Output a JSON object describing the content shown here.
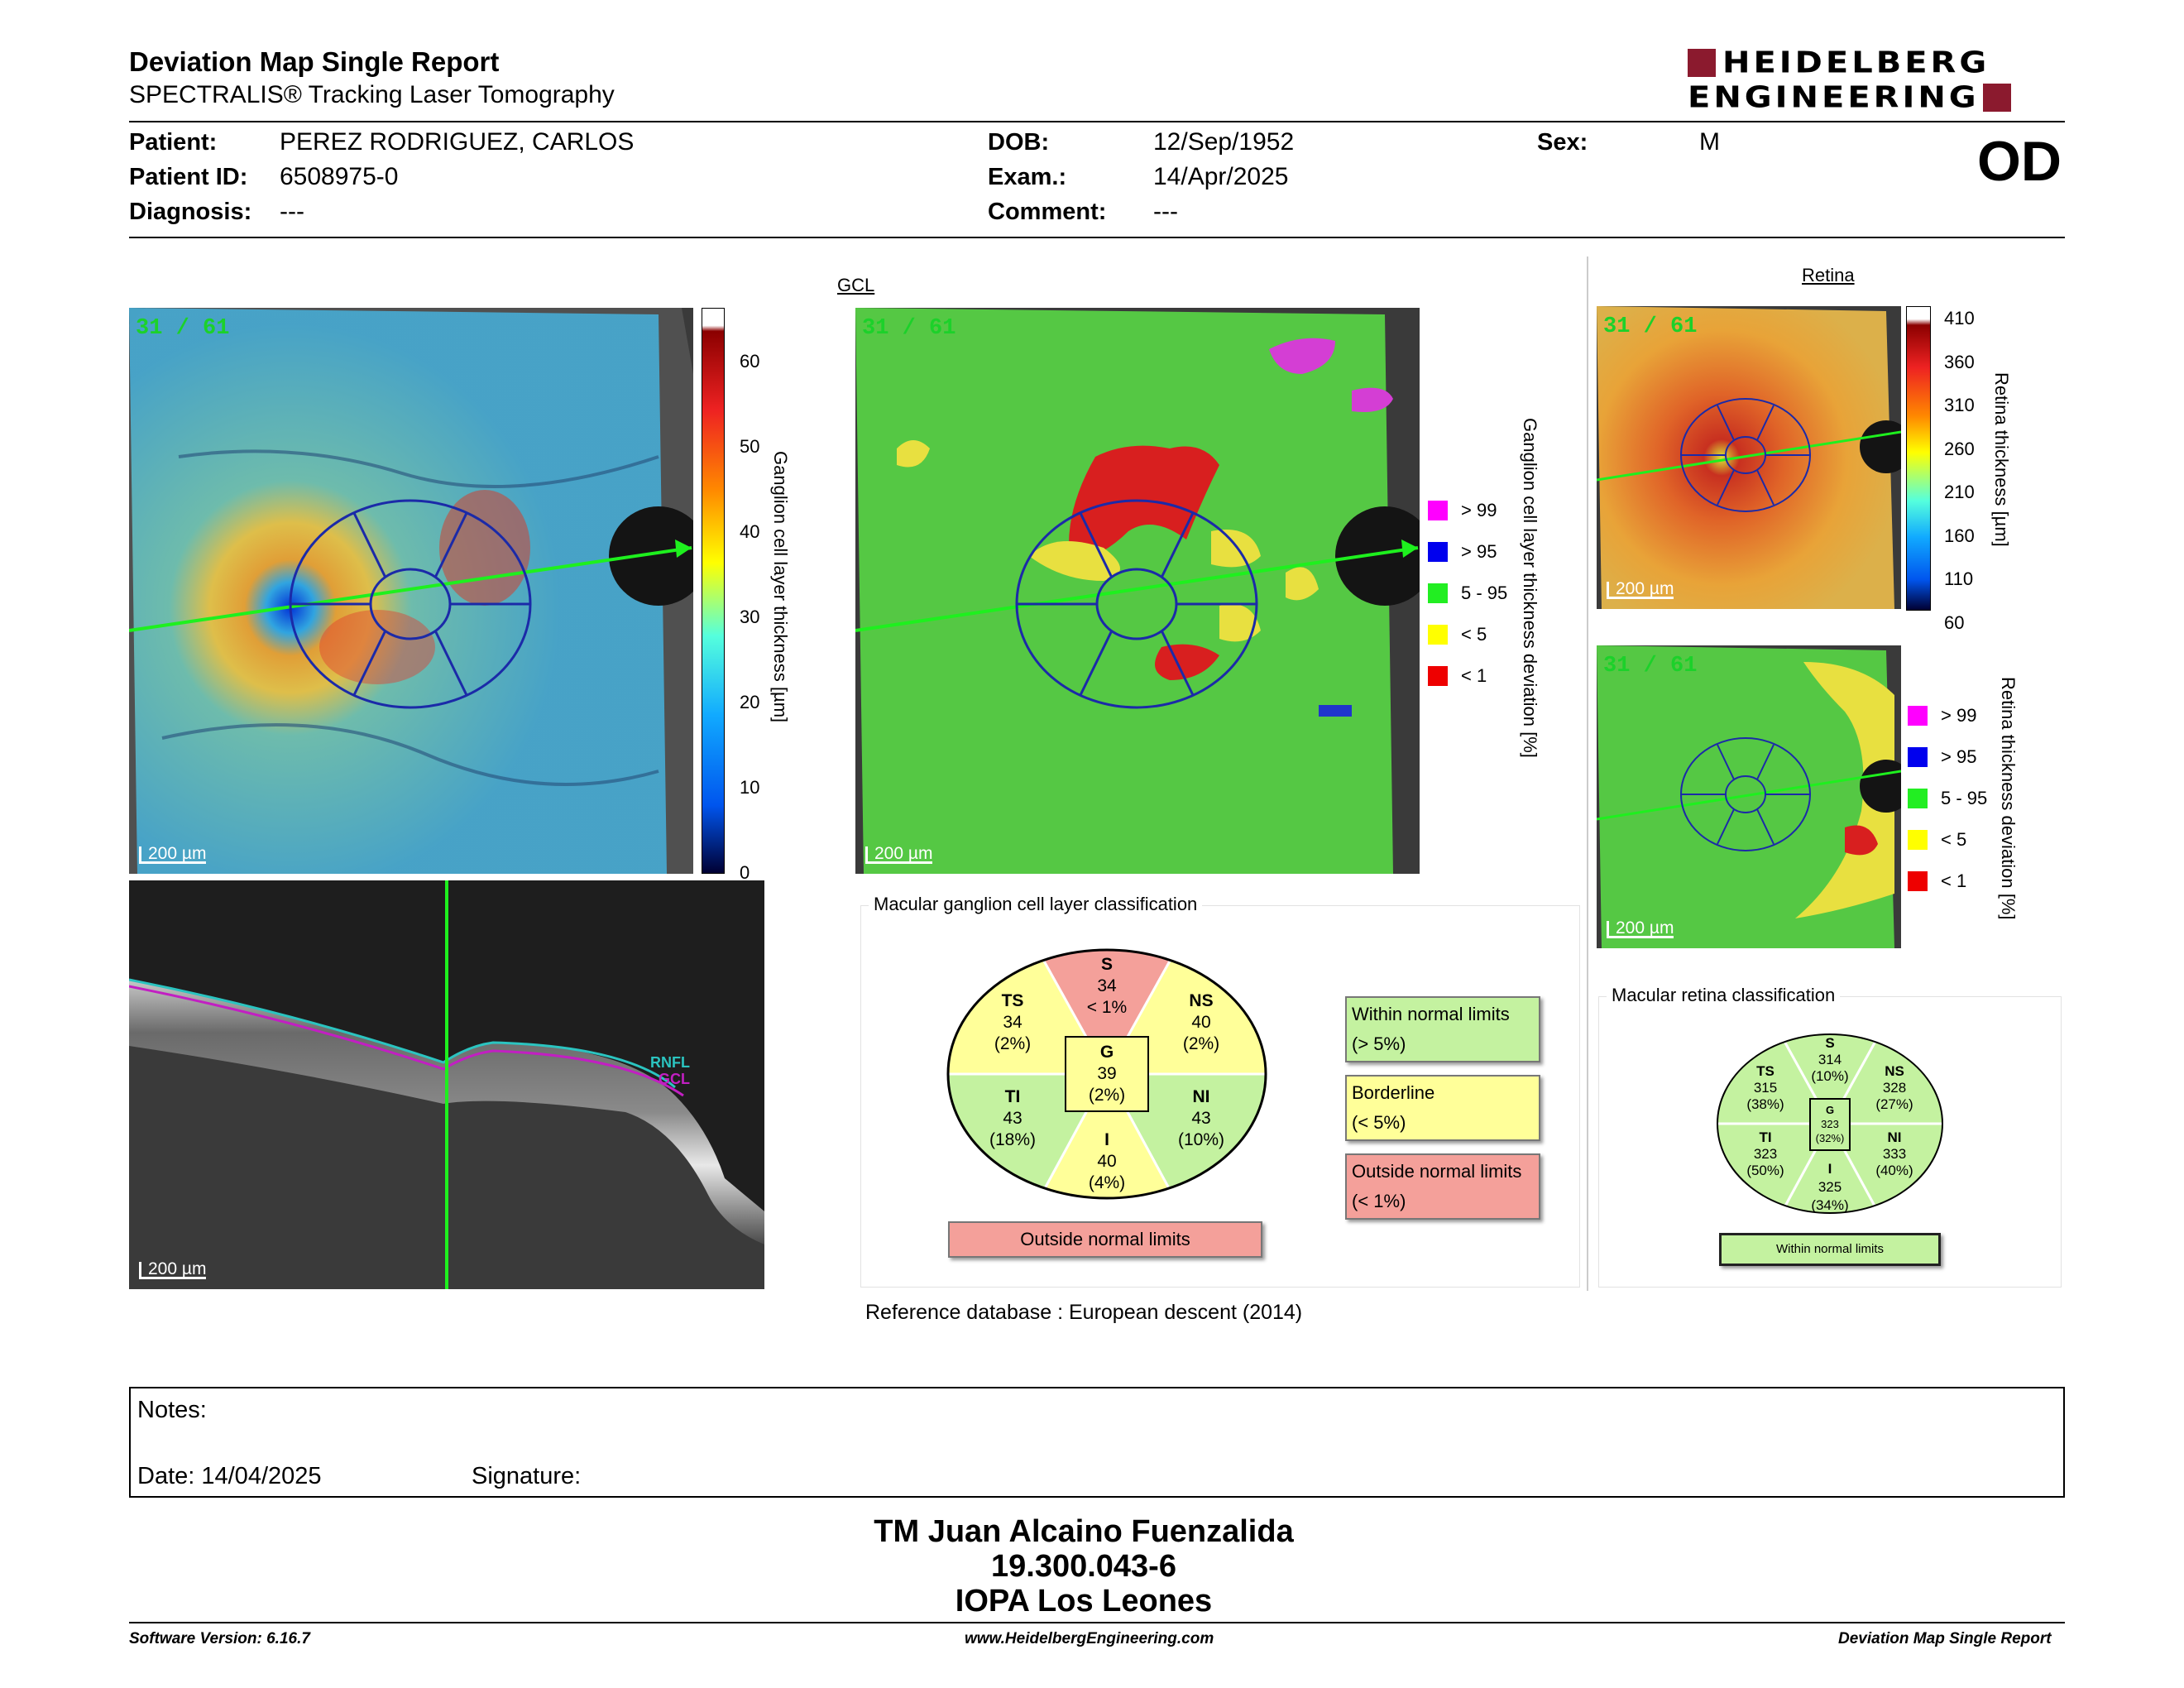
{
  "header": {
    "title": "Deviation Map Single Report",
    "subtitle": "SPECTRALIS® Tracking Laser Tomography",
    "logo_line1": "HEIDELBERG",
    "logo_line2": "ENGINEERING",
    "eye": "OD"
  },
  "patient": {
    "patient_label": "Patient:",
    "patient": "PEREZ RODRIGUEZ, CARLOS",
    "id_label": "Patient ID:",
    "id": "6508975-0",
    "diag_label": "Diagnosis:",
    "diagnosis": "---",
    "dob_label": "DOB:",
    "dob": "12/Sep/1952",
    "exam_label": "Exam.:",
    "exam": "14/Apr/2025",
    "comment_label": "Comment:",
    "comment": "---",
    "sex_label": "Sex:",
    "sex": "M"
  },
  "gcl_section": {
    "title": "GCL",
    "thickness_map": {
      "frame": "31 / 61",
      "scale": "200 µm"
    },
    "thickness_bar": {
      "label": "Ganglion cell layer thickness [µm]",
      "ticks": [
        "60",
        "50",
        "40",
        "30",
        "20",
        "10",
        "0"
      ]
    },
    "deviation_map": {
      "frame": "31 / 61",
      "scale": "200 µm"
    },
    "deviation_label": "Ganglion cell layer thickness deviation [%]",
    "legend": [
      {
        "label": "> 99",
        "color": "#ff00ff"
      },
      {
        "label": "> 95",
        "color": "#0000ee"
      },
      {
        "label": "5 - 95",
        "color": "#22ee22"
      },
      {
        "label": "< 5",
        "color": "#ffff00"
      },
      {
        "label": "< 1",
        "color": "#ee0000"
      }
    ]
  },
  "bscan": {
    "scale": "200 µm",
    "rnfl": "RNFL",
    "gcl": "GCL"
  },
  "gcl_classification": {
    "title": "Macular ganglion cell layer classification",
    "sectors": {
      "S": {
        "name": "S",
        "value": "34",
        "pct": "< 1%",
        "color": "#f4a09a"
      },
      "NS": {
        "name": "NS",
        "value": "40",
        "pct": "(2%)",
        "color": "#ffff99"
      },
      "NI": {
        "name": "NI",
        "value": "43",
        "pct": "(10%)",
        "color": "#c4f2a0"
      },
      "I": {
        "name": "I",
        "value": "40",
        "pct": "(4%)",
        "color": "#ffff99"
      },
      "TI": {
        "name": "TI",
        "value": "43",
        "pct": "(18%)",
        "color": "#c4f2a0"
      },
      "TS": {
        "name": "TS",
        "value": "34",
        "pct": "(2%)",
        "color": "#ffff99"
      },
      "G": {
        "name": "G",
        "value": "39",
        "pct": "(2%)",
        "color": "#ffff99"
      }
    },
    "overall": "Outside normal limits",
    "legend": [
      {
        "line1": "Within normal limits",
        "line2": "(> 5%)",
        "color": "#c4f2a0"
      },
      {
        "line1": "Borderline",
        "line2": "(< 5%)",
        "color": "#ffff99"
      },
      {
        "line1": "Outside normal limits",
        "line2": "(< 1%)",
        "color": "#f4a09a"
      }
    ],
    "reference": "Reference database :  European descent (2014)"
  },
  "retina_section": {
    "title": "Retina",
    "thickness_map": {
      "frame": "31 / 61",
      "scale": "200 µm"
    },
    "thickness_bar": {
      "label": "Retina thickness [µm]",
      "ticks": [
        "410",
        "360",
        "310",
        "260",
        "210",
        "160",
        "110",
        "60"
      ]
    },
    "deviation_map": {
      "frame": "31 / 61",
      "scale": "200 µm"
    },
    "deviation_label": "Retina thickness deviation [%]",
    "legend": [
      {
        "label": "> 99",
        "color": "#ff00ff"
      },
      {
        "label": "> 95",
        "color": "#0000ee"
      },
      {
        "label": "5 - 95",
        "color": "#22ee22"
      },
      {
        "label": "< 5",
        "color": "#ffff00"
      },
      {
        "label": "< 1",
        "color": "#ee0000"
      }
    ]
  },
  "retina_classification": {
    "title": "Macular retina classification",
    "sectors": {
      "S": {
        "name": "S",
        "value": "314",
        "pct": "(10%)"
      },
      "NS": {
        "name": "NS",
        "value": "328",
        "pct": "(27%)"
      },
      "NI": {
        "name": "NI",
        "value": "333",
        "pct": "(40%)"
      },
      "I": {
        "name": "I",
        "value": "325",
        "pct": "(34%)"
      },
      "TI": {
        "name": "TI",
        "value": "323",
        "pct": "(50%)"
      },
      "TS": {
        "name": "TS",
        "value": "315",
        "pct": "(38%)"
      },
      "G": {
        "name": "G",
        "value": "323",
        "pct": "(32%)"
      }
    },
    "overall": "Within normal limits"
  },
  "notes": {
    "notes_label": "Notes:",
    "date_label": "Date: 14/04/2025",
    "signature_label": "Signature:"
  },
  "signature": {
    "name": "TM Juan Alcaino Fuenzalida",
    "rut": "19.300.043-6",
    "institution": "IOPA Los Leones"
  },
  "footer": {
    "version": "Software Version: 6.16.7",
    "url": "www.HeidelbergEngineering.com",
    "report": "Deviation Map Single Report"
  }
}
